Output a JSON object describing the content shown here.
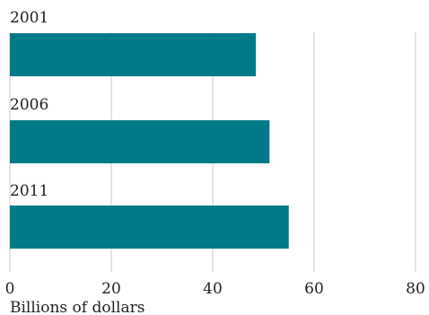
{
  "chart_data": {
    "type": "bar",
    "orientation": "horizontal",
    "categories": [
      "2001",
      "2006",
      "2011"
    ],
    "values": [
      48.5,
      51.2,
      55.0
    ],
    "xlabel": "Billions of dollars",
    "xlim": [
      0,
      80
    ],
    "xticks": [
      "0",
      "20",
      "40",
      "60",
      "80"
    ],
    "grid": true,
    "bar_color": "#007a87"
  }
}
